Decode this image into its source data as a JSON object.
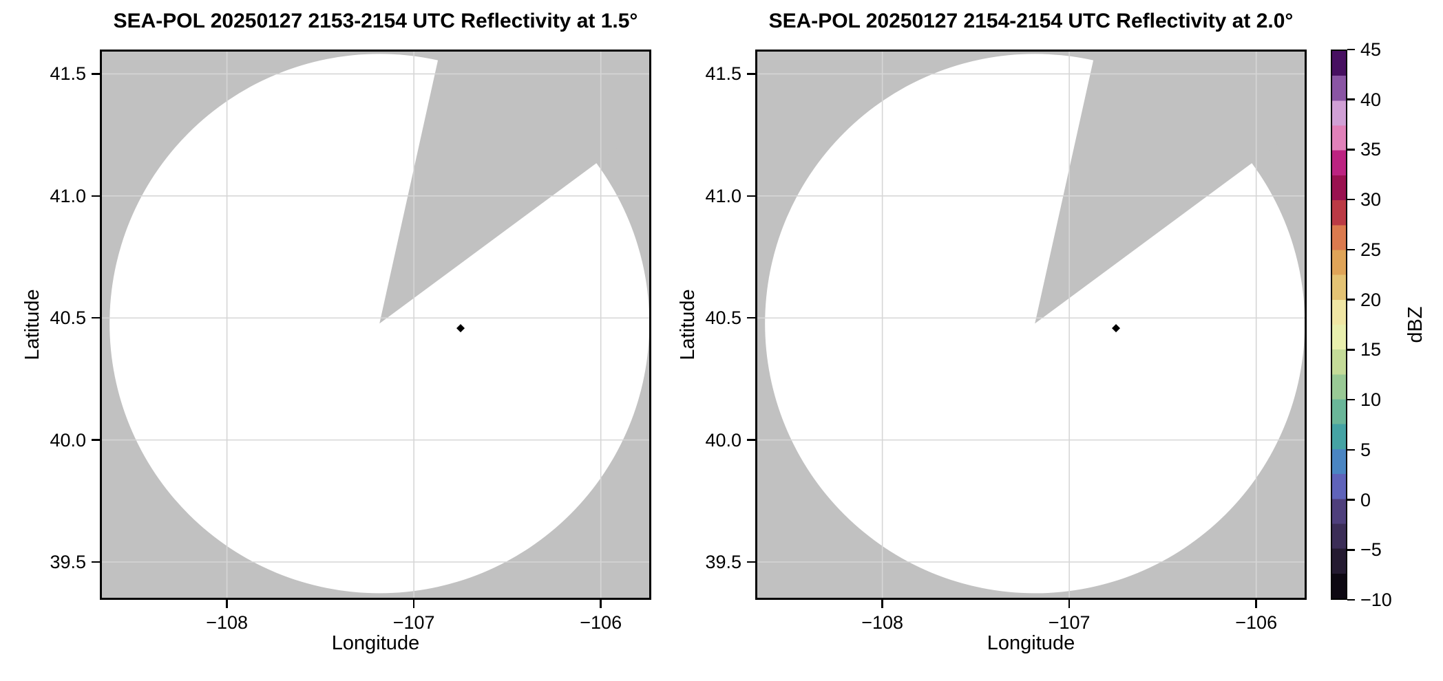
{
  "figure": {
    "background": "#ffffff",
    "nodata_gray": "#c1c1c1",
    "data_white": "#ffffff",
    "grid_color": "#d6d6d6",
    "spine_color": "#000000",
    "echo_dot_color": "#000000"
  },
  "panels": [
    {
      "title": "SEA-POL 20250127 2153-2154 UTC Reflectivity at 1.5°",
      "xlabel": "Longitude",
      "ylabel": "Latitude",
      "xtick_labels": [
        "−108",
        "−107",
        "−106"
      ],
      "ytick_labels": [
        "41.5",
        "41.0",
        "40.5",
        "40.0",
        "39.5"
      ]
    },
    {
      "title": "SEA-POL 20250127 2154-2154 UTC Reflectivity at 2.0°",
      "xlabel": "Longitude",
      "ylabel": "Latitude",
      "xtick_labels": [
        "−108",
        "−107",
        "−106"
      ],
      "ytick_labels": [
        "41.5",
        "41.0",
        "40.5",
        "40.0",
        "39.5"
      ]
    }
  ],
  "colorbar": {
    "label": "dBZ",
    "tick_labels": [
      "45",
      "40",
      "35",
      "30",
      "25",
      "20",
      "15",
      "10",
      "5",
      "0",
      "−5",
      "−10"
    ],
    "tick_values": [
      45,
      40,
      35,
      30,
      25,
      20,
      15,
      10,
      5,
      0,
      -5,
      -10
    ],
    "min": -10,
    "max": 45,
    "band_colors_bottom_to_top": [
      "#0d0812",
      "#241a31",
      "#3b2d57",
      "#4e3f7c",
      "#5f63ba",
      "#4a85c2",
      "#45a3a4",
      "#6ab699",
      "#99c995",
      "#c4db98",
      "#e9efae",
      "#f0e6a4",
      "#e4c374",
      "#dfa458",
      "#db7a4e",
      "#bb3a45",
      "#9a1150",
      "#bc2381",
      "#e081b9",
      "#d0a0d5",
      "#8a55a4",
      "#471061"
    ]
  },
  "chart_data": {
    "type": "radar_ppi_reflectivity_pair",
    "radar_name": "SEA-POL",
    "date": "20250127",
    "panels": [
      {
        "title": "SEA-POL 20250127 2153-2154 UTC Reflectivity at 1.5°",
        "time_utc": "2153-2154",
        "elevation_deg": 1.5
      },
      {
        "title": "SEA-POL 20250127 2154-2154 UTC Reflectivity at 2.0°",
        "time_utc": "2154-2154",
        "elevation_deg": 2.0
      }
    ],
    "xlabel": "Longitude",
    "ylabel": "Latitude",
    "xlim": [
      -108.68,
      -105.73
    ],
    "ylim": [
      39.345,
      41.6
    ],
    "xticks": [
      -108,
      -107,
      -106
    ],
    "yticks": [
      41.5,
      41.0,
      40.5,
      40.0,
      39.5
    ],
    "grid": true,
    "radar_center": {
      "lon": -107.184,
      "lat": 40.477
    },
    "scan_radius_deg_lat": 1.105,
    "missing_sector_azimuth_deg": [
      12.5,
      53.5
    ],
    "echo_points": [
      {
        "lon": -106.75,
        "lat": 40.458,
        "value_dbz": -10,
        "shape": "small black diamond",
        "present_in_panels": [
          1,
          2
        ]
      }
    ],
    "colorbar": {
      "label": "dBZ",
      "range": [
        -10,
        45
      ],
      "ticks": [
        45,
        40,
        35,
        30,
        25,
        20,
        15,
        10,
        5,
        0,
        -5,
        -10
      ],
      "colormap_description": "spectral-like: black at -10, indigo/blue 0-5, teal/green 5-12, yellow 15-20, orange 22-27, red 28-30, maroon-magenta 30-35, pink 36-39, lavender 40, dark purple 45"
    }
  }
}
